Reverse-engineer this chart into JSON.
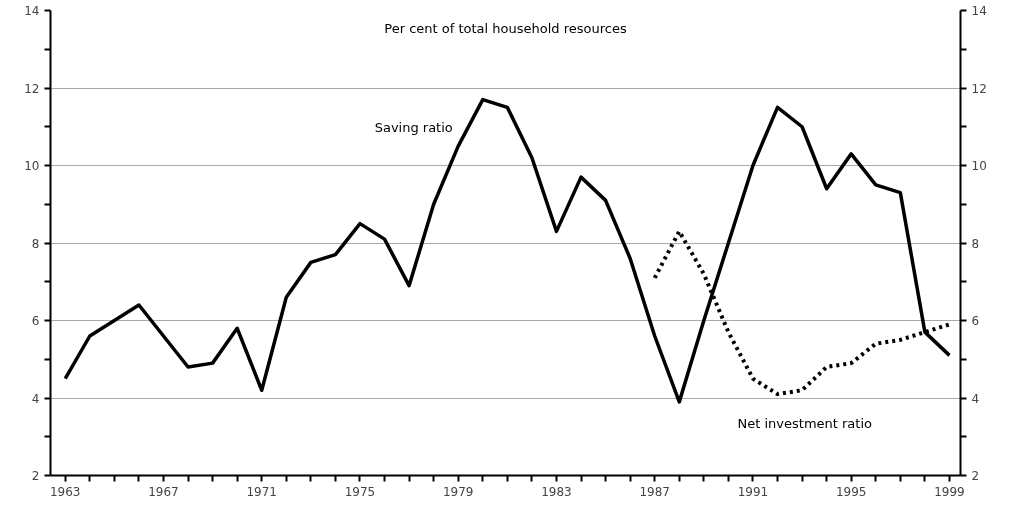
{
  "chart_data": {
    "type": "line",
    "annotations": [
      "Per cent of total household resources"
    ],
    "x": [
      1963,
      1964,
      1965,
      1966,
      1967,
      1968,
      1969,
      1970,
      1971,
      1972,
      1973,
      1974,
      1975,
      1976,
      1977,
      1978,
      1979,
      1980,
      1981,
      1982,
      1983,
      1984,
      1985,
      1986,
      1987,
      1988,
      1989,
      1990,
      1991,
      1992,
      1993,
      1994,
      1995,
      1996,
      1997,
      1998,
      1999
    ],
    "series": [
      {
        "name": "Saving ratio",
        "color": "#000000",
        "line_style": "solid",
        "values": [
          4.5,
          5.6,
          6.0,
          6.4,
          5.6,
          4.8,
          4.9,
          5.8,
          4.2,
          6.6,
          7.5,
          7.7,
          8.5,
          8.1,
          6.9,
          9.0,
          10.5,
          11.7,
          11.5,
          10.2,
          8.3,
          9.7,
          9.1,
          7.6,
          5.6,
          3.9,
          6.0,
          8.0,
          10.0,
          11.5,
          11.0,
          9.4,
          10.3,
          9.5,
          9.3,
          5.7,
          5.1
        ]
      },
      {
        "name": "Net investment ratio",
        "color": "#000000",
        "line_style": "dotted",
        "x": [
          1987,
          1988,
          1989,
          1990,
          1991,
          1992,
          1993,
          1994,
          1995,
          1996,
          1997,
          1998,
          1999
        ],
        "values": [
          7.1,
          8.3,
          7.2,
          5.7,
          4.5,
          4.1,
          4.2,
          4.8,
          4.9,
          5.4,
          5.5,
          5.7,
          5.9
        ]
      }
    ],
    "xlim": [
      1962.4,
      1999.45
    ],
    "xticks": [
      1963,
      {
        "value": 1964,
        "label": null
      },
      {
        "value": 1965,
        "label": null
      },
      {
        "value": 1966,
        "label": null
      },
      1967,
      {
        "value": 1968,
        "label": null
      },
      {
        "value": 1969,
        "label": null
      },
      {
        "value": 1970,
        "label": null
      },
      1971,
      {
        "value": 1972,
        "label": null
      },
      {
        "value": 1973,
        "label": null
      },
      {
        "value": 1974,
        "label": null
      },
      1975,
      {
        "value": 1976,
        "label": null
      },
      {
        "value": 1977,
        "label": null
      },
      {
        "value": 1978,
        "label": null
      },
      1979,
      {
        "value": 1980,
        "label": null
      },
      {
        "value": 1981,
        "label": null
      },
      {
        "value": 1982,
        "label": null
      },
      1983,
      {
        "value": 1984,
        "label": null
      },
      {
        "value": 1985,
        "label": null
      },
      {
        "value": 1986,
        "label": null
      },
      1987,
      {
        "value": 1988,
        "label": null
      },
      {
        "value": 1989,
        "label": null
      },
      {
        "value": 1990,
        "label": null
      },
      1991,
      {
        "value": 1992,
        "label": null
      },
      {
        "value": 1993,
        "label": null
      },
      {
        "value": 1994,
        "label": null
      },
      1995,
      {
        "value": 1996,
        "label": null
      },
      {
        "value": 1997,
        "label": null
      },
      {
        "value": 1998,
        "label": null
      },
      1999
    ],
    "ylim": [
      2,
      14
    ],
    "yticks": [
      2,
      {
        "value": 3,
        "label": null
      },
      4,
      {
        "value": 5,
        "label": null
      },
      6,
      {
        "value": 7,
        "label": null
      },
      8,
      {
        "value": 9,
        "label": null
      },
      10,
      {
        "value": 11,
        "label": null
      },
      12,
      {
        "value": 13,
        "label": null
      },
      14
    ],
    "y2lim": [
      2,
      14
    ],
    "y2ticks": [
      2,
      {
        "value": 3,
        "label": null
      },
      4,
      {
        "value": 5,
        "label": null
      },
      6,
      {
        "value": 7,
        "label": null
      },
      8,
      {
        "value": 9,
        "label": null
      },
      10,
      {
        "value": 11,
        "label": null
      },
      12,
      {
        "value": 13,
        "label": null
      },
      14
    ],
    "grid": "y",
    "legend": false,
    "marker": "none"
  }
}
